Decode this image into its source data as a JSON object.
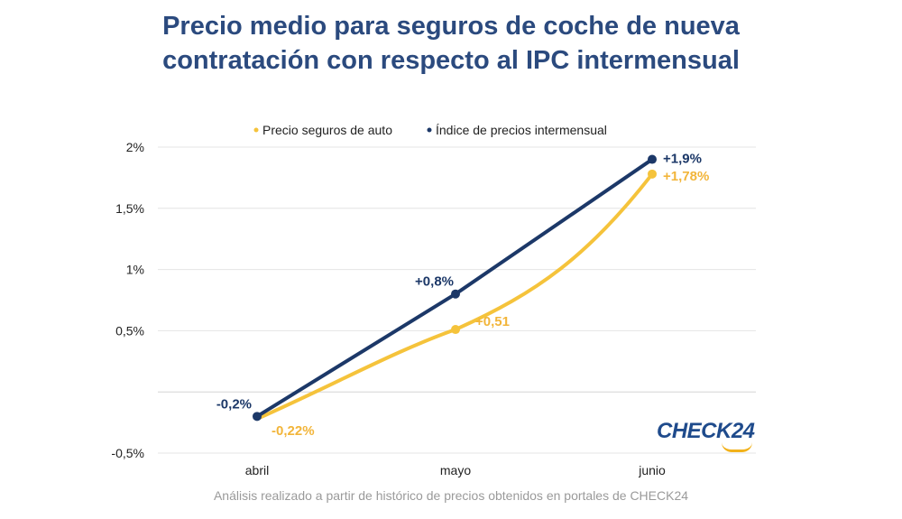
{
  "title": {
    "line1": "Precio medio para seguros de coche de nueva",
    "line2": "contratación con respecto al IPC intermensual"
  },
  "footer": "Análisis realizado a partir de histórico de precios obtenidos en portales de CHECK24",
  "brand": "CHECK24",
  "colors": {
    "title": "#2b4a7e",
    "ipc": "#1c3868",
    "seguros": "#f5c33b",
    "seguros_label": "#f2b53a",
    "grid": "#e4e4e4",
    "footer": "#9a9a9a"
  },
  "chart_data": {
    "type": "line",
    "categories": [
      "abril",
      "mayo",
      "junio"
    ],
    "ylim": [
      -0.5,
      2
    ],
    "yticks": [
      {
        "value": 2,
        "label": "2%"
      },
      {
        "value": 1.5,
        "label": "1,5%"
      },
      {
        "value": 1,
        "label": "1%"
      },
      {
        "value": 0.5,
        "label": "0,5%"
      },
      {
        "value": 0,
        "label": ""
      },
      {
        "value": -0.5,
        "label": "-0,5%"
      }
    ],
    "legend_position": "top-center",
    "series": [
      {
        "key": "seguros",
        "name": "Precio seguros de auto",
        "values": [
          -0.22,
          0.51,
          1.78
        ],
        "labels": [
          "-0,22%",
          "+0,51",
          "+1,78%"
        ],
        "curve": "smooth"
      },
      {
        "key": "ipc",
        "name": "Índice de precios intermensual",
        "values": [
          -0.2,
          0.8,
          1.9
        ],
        "labels": [
          "-0,2%",
          "+0,8%",
          "+1,9%"
        ],
        "curve": "straight"
      }
    ]
  }
}
